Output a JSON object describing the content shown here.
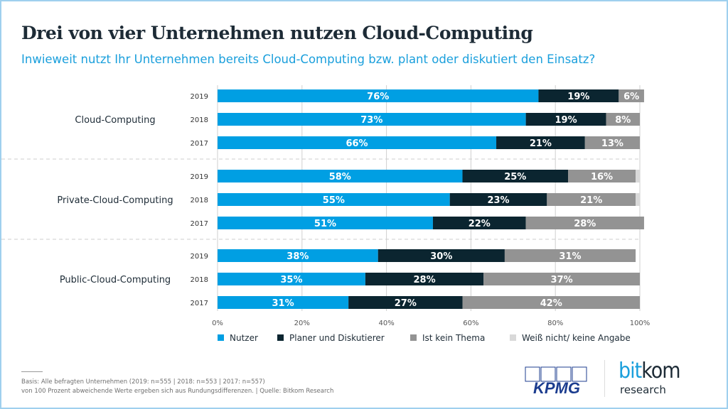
{
  "title": "Drei von vier Unternehmen nutzen Cloud-Computing",
  "subtitle": "Inwieweit nutzt Ihr Unternehmen bereits Cloud-Computing bzw. plant oder diskutiert den Einsatz?",
  "footnote": {
    "line1": "Basis: Alle befragten Unternehmen (2019: n=555 | 2018: n=553 | 2017: n=557)",
    "line2": "von 100 Prozent abweichende Werte ergeben sich aus Rundungsdifferenzen. | Quelle: Bitkom Research"
  },
  "logos": {
    "kpmg": "KPMG",
    "bitkom_bit": "bit",
    "bitkom_kom": "kom",
    "bitkom_research": "research"
  },
  "chart_data": {
    "type": "bar",
    "orientation": "horizontal",
    "stacked": true,
    "title": "Drei von vier Unternehmen nutzen Cloud-Computing",
    "xlim": [
      0,
      100
    ],
    "xticks": [
      "0%",
      "20%",
      "40%",
      "60%",
      "80%",
      "100%"
    ],
    "grid": true,
    "legend": "bottom",
    "groups": [
      {
        "label": "Cloud-Computing",
        "years": [
          "2019",
          "2018",
          "2017"
        ]
      },
      {
        "label": "Private-Cloud-Computing",
        "years": [
          "2019",
          "2018",
          "2017"
        ]
      },
      {
        "label": "Public-Cloud-Computing",
        "years": [
          "2019",
          "2018",
          "2017"
        ]
      }
    ],
    "series": [
      {
        "name": "Nutzer",
        "color": "#009fe3",
        "values": [
          76,
          73,
          66,
          58,
          55,
          51,
          38,
          35,
          31
        ]
      },
      {
        "name": "Planer und Diskutierer",
        "color": "#0b2530",
        "values": [
          19,
          19,
          21,
          25,
          23,
          22,
          30,
          28,
          27
        ]
      },
      {
        "name": "Ist kein Thema",
        "color": "#939393",
        "values": [
          6,
          8,
          13,
          16,
          21,
          28,
          31,
          37,
          42
        ]
      },
      {
        "name": "Weiß nicht/ keine Angabe",
        "color": "#d9d9d9",
        "values": [
          0,
          0,
          0,
          1,
          1,
          0,
          0,
          0,
          0
        ]
      }
    ]
  }
}
